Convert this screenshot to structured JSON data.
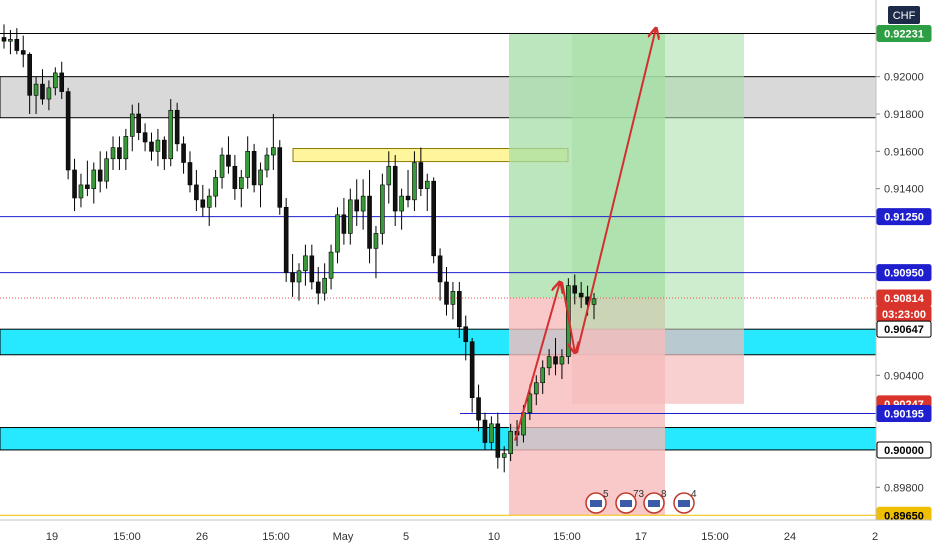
{
  "symbol_badge": "CHF",
  "price_labels": [
    {
      "text": "0.92231",
      "type": "badge",
      "bg": "#2e9e44",
      "fg": "#ffffff"
    },
    {
      "text": "0.92000",
      "type": "tick"
    },
    {
      "text": "0.91800",
      "type": "tick"
    },
    {
      "text": "0.91600",
      "type": "tick"
    },
    {
      "text": "0.91400",
      "type": "tick"
    },
    {
      "text": "0.91250",
      "type": "badge",
      "bg": "#1f1fcf",
      "fg": "#ffffff"
    },
    {
      "text": "0.90950",
      "type": "badge",
      "bg": "#1f1fcf",
      "fg": "#ffffff"
    },
    {
      "text": "0.90814",
      "type": "badge",
      "bg": "#d9342b",
      "fg": "#ffffff"
    },
    {
      "text": "03:23:00",
      "type": "badge",
      "bg": "#d9342b",
      "fg": "#ffffff"
    },
    {
      "text": "0.90647",
      "type": "badge",
      "bg": "#ffffff",
      "fg": "#000000",
      "border": "#000000"
    },
    {
      "text": "0.90400",
      "type": "tick"
    },
    {
      "text": "0.90247",
      "type": "badge",
      "bg": "#d9342b",
      "fg": "#ffffff"
    },
    {
      "text": "0.90195",
      "type": "badge",
      "bg": "#1f1fcf",
      "fg": "#ffffff"
    },
    {
      "text": "0.90000",
      "type": "badge",
      "bg": "#ffffff",
      "fg": "#000000",
      "border": "#000000"
    },
    {
      "text": "0.89800",
      "type": "tick"
    },
    {
      "text": "0.89650",
      "type": "badge",
      "bg": "#f0c000",
      "fg": "#000000"
    }
  ],
  "time_labels": [
    "19",
    "15:00",
    "26",
    "15:00",
    "May",
    "5",
    "10",
    "15:00",
    "17",
    "15:00",
    "24",
    "2"
  ],
  "event_badges": [
    "5",
    "73",
    "8",
    "4"
  ],
  "colors": {
    "up_candle": "#26a69a",
    "down_candle": "#ef5350",
    "cyan_zone": "#00e5ff",
    "gray_zone": "#d9d9d9",
    "yellow_zone": "#fff59d",
    "profit_zone": "#a5dea5",
    "loss_zone": "#f7bcbc",
    "arrow": "#d32f2f",
    "hline": "#1f1fcf"
  },
  "chart_data": {
    "type": "candlestick",
    "price_axis_range": [
      0.8963,
      0.924
    ],
    "horizontal_levels": [
      0.92231,
      0.9125,
      0.9095,
      0.90195,
      0.8965
    ],
    "zones": [
      {
        "kind": "gray",
        "from": 0.9178,
        "to": 0.92
      },
      {
        "kind": "cyan",
        "from": 0.9051,
        "to": 0.90647
      },
      {
        "kind": "cyan",
        "from": 0.9,
        "to": 0.9012
      },
      {
        "kind": "yellow",
        "from": 0.91545,
        "to": 0.91615
      }
    ],
    "current_price": 0.90814,
    "candle_countdown": "03:23:00",
    "candles": [
      [
        0.9221,
        0.9228,
        0.9215,
        0.9219
      ],
      [
        0.9219,
        0.9225,
        0.9212,
        0.922
      ],
      [
        0.922,
        0.9226,
        0.9212,
        0.9214
      ],
      [
        0.9214,
        0.9222,
        0.9205,
        0.9212
      ],
      [
        0.9212,
        0.9213,
        0.918,
        0.919
      ],
      [
        0.919,
        0.92,
        0.918,
        0.9196
      ],
      [
        0.9196,
        0.9204,
        0.9185,
        0.9188
      ],
      [
        0.9188,
        0.9198,
        0.9182,
        0.9194
      ],
      [
        0.9194,
        0.9205,
        0.919,
        0.9202
      ],
      [
        0.9202,
        0.9208,
        0.9188,
        0.9192
      ],
      [
        0.9192,
        0.9194,
        0.9145,
        0.915
      ],
      [
        0.915,
        0.9156,
        0.9128,
        0.9135
      ],
      [
        0.9135,
        0.9148,
        0.913,
        0.9142
      ],
      [
        0.9142,
        0.9155,
        0.9136,
        0.914
      ],
      [
        0.914,
        0.9154,
        0.9132,
        0.915
      ],
      [
        0.915,
        0.916,
        0.9138,
        0.9144
      ],
      [
        0.9144,
        0.916,
        0.914,
        0.9156
      ],
      [
        0.9156,
        0.9168,
        0.915,
        0.9162
      ],
      [
        0.9162,
        0.9168,
        0.915,
        0.9156
      ],
      [
        0.9156,
        0.9172,
        0.915,
        0.9168
      ],
      [
        0.9168,
        0.9185,
        0.916,
        0.918
      ],
      [
        0.918,
        0.9186,
        0.9166,
        0.917
      ],
      [
        0.917,
        0.9175,
        0.916,
        0.9165
      ],
      [
        0.9165,
        0.917,
        0.9155,
        0.916
      ],
      [
        0.916,
        0.9172,
        0.9152,
        0.9166
      ],
      [
        0.9166,
        0.9168,
        0.915,
        0.9156
      ],
      [
        0.9156,
        0.9188,
        0.9152,
        0.9182
      ],
      [
        0.9182,
        0.9186,
        0.916,
        0.9164
      ],
      [
        0.9164,
        0.9168,
        0.9148,
        0.9154
      ],
      [
        0.9154,
        0.916,
        0.9138,
        0.9142
      ],
      [
        0.9142,
        0.915,
        0.9128,
        0.9134
      ],
      [
        0.9134,
        0.9142,
        0.9125,
        0.913
      ],
      [
        0.913,
        0.914,
        0.912,
        0.9136
      ],
      [
        0.9136,
        0.915,
        0.913,
        0.9146
      ],
      [
        0.9146,
        0.9162,
        0.914,
        0.9158
      ],
      [
        0.9158,
        0.9168,
        0.9148,
        0.9152
      ],
      [
        0.9152,
        0.9158,
        0.9134,
        0.914
      ],
      [
        0.914,
        0.915,
        0.913,
        0.9146
      ],
      [
        0.9146,
        0.9168,
        0.914,
        0.916
      ],
      [
        0.916,
        0.9164,
        0.9138,
        0.9142
      ],
      [
        0.9142,
        0.9154,
        0.913,
        0.915
      ],
      [
        0.915,
        0.9162,
        0.9146,
        0.9158
      ],
      [
        0.9158,
        0.918,
        0.915,
        0.9162
      ],
      [
        0.9162,
        0.9166,
        0.9126,
        0.913
      ],
      [
        0.913,
        0.9135,
        0.909,
        0.9095
      ],
      [
        0.9095,
        0.9105,
        0.9082,
        0.909
      ],
      [
        0.909,
        0.91,
        0.908,
        0.9096
      ],
      [
        0.9096,
        0.911,
        0.9088,
        0.9104
      ],
      [
        0.9104,
        0.911,
        0.9086,
        0.909
      ],
      [
        0.909,
        0.9098,
        0.9078,
        0.9084
      ],
      [
        0.9084,
        0.91,
        0.908,
        0.9092
      ],
      [
        0.9092,
        0.911,
        0.9086,
        0.9106
      ],
      [
        0.9106,
        0.913,
        0.91,
        0.9126
      ],
      [
        0.9126,
        0.9135,
        0.911,
        0.9116
      ],
      [
        0.9116,
        0.914,
        0.911,
        0.9134
      ],
      [
        0.9134,
        0.9145,
        0.912,
        0.9128
      ],
      [
        0.9128,
        0.9145,
        0.9118,
        0.9136
      ],
      [
        0.9136,
        0.915,
        0.91,
        0.9108
      ],
      [
        0.9108,
        0.912,
        0.9092,
        0.9116
      ],
      [
        0.9116,
        0.9148,
        0.911,
        0.9142
      ],
      [
        0.9142,
        0.916,
        0.9132,
        0.9152
      ],
      [
        0.9152,
        0.9158,
        0.912,
        0.9128
      ],
      [
        0.9128,
        0.914,
        0.9118,
        0.9136
      ],
      [
        0.9136,
        0.915,
        0.913,
        0.9134
      ],
      [
        0.9134,
        0.916,
        0.9128,
        0.9154
      ],
      [
        0.9154,
        0.9162,
        0.9136,
        0.914
      ],
      [
        0.914,
        0.9148,
        0.9128,
        0.9144
      ],
      [
        0.9144,
        0.9146,
        0.91,
        0.9104
      ],
      [
        0.9104,
        0.9108,
        0.908,
        0.909
      ],
      [
        0.909,
        0.9098,
        0.9072,
        0.9078
      ],
      [
        0.9078,
        0.909,
        0.907,
        0.9085
      ],
      [
        0.9085,
        0.909,
        0.906,
        0.9066
      ],
      [
        0.9066,
        0.9072,
        0.9048,
        0.9058
      ],
      [
        0.9058,
        0.906,
        0.902,
        0.9028
      ],
      [
        0.9028,
        0.9035,
        0.901,
        0.9016
      ],
      [
        0.9016,
        0.902,
        0.9,
        0.9004
      ],
      [
        0.9004,
        0.9018,
        0.9,
        0.9014
      ],
      [
        0.9014,
        0.902,
        0.899,
        0.8996
      ],
      [
        0.8996,
        0.9002,
        0.8988,
        0.8998
      ],
      [
        0.8998,
        0.9014,
        0.8994,
        0.901
      ],
      [
        0.901,
        0.9016,
        0.9002,
        0.9008
      ],
      [
        0.9008,
        0.9024,
        0.9004,
        0.902
      ],
      [
        0.902,
        0.9035,
        0.9016,
        0.903
      ],
      [
        0.903,
        0.904,
        0.9024,
        0.9036
      ],
      [
        0.9036,
        0.9048,
        0.903,
        0.9044
      ],
      [
        0.9044,
        0.9054,
        0.904,
        0.905
      ],
      [
        0.905,
        0.906,
        0.904,
        0.9046
      ],
      [
        0.9046,
        0.9054,
        0.9038,
        0.905
      ],
      [
        0.905,
        0.9092,
        0.9046,
        0.9088
      ],
      [
        0.9088,
        0.9094,
        0.9078,
        0.9084
      ],
      [
        0.9084,
        0.909,
        0.9076,
        0.9082
      ],
      [
        0.9082,
        0.9088,
        0.9072,
        0.9078
      ],
      [
        0.9078,
        0.9084,
        0.907,
        0.9081
      ]
    ]
  }
}
